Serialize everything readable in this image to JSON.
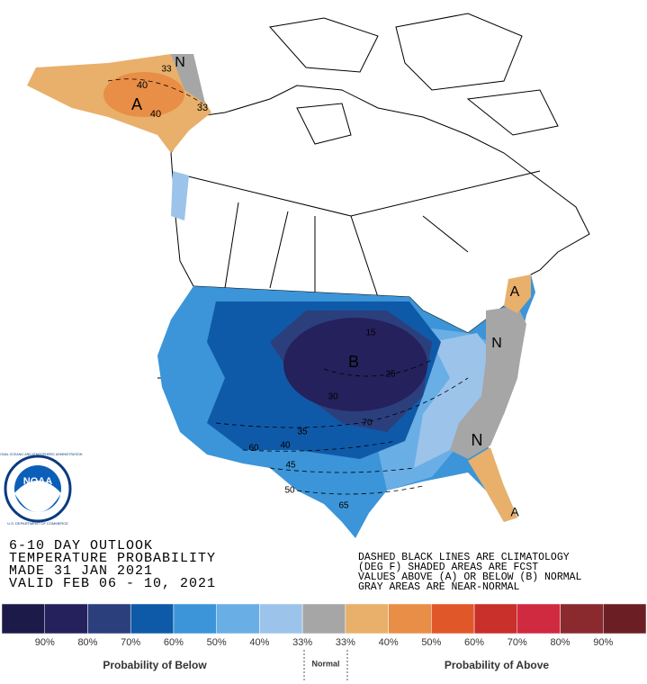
{
  "header": {
    "lines": [
      "6-10 DAY OUTLOOK",
      "TEMPERATURE PROBABILITY",
      "MADE  31 JAN 2021",
      "VALID  FEB 06 - 10, 2021"
    ]
  },
  "notes": {
    "lines": [
      "DASHED BLACK LINES ARE CLIMATOLOGY",
      "(DEG F) SHADED AREAS ARE FCST",
      "VALUES ABOVE (A) OR BELOW (B) NORMAL",
      "GRAY AREAS ARE NEAR-NORMAL"
    ]
  },
  "logo": {
    "name": "NOAA",
    "ring_top": "NATIONAL OCEANIC AND ATMOSPHERIC ADMINISTRATION",
    "ring_bottom": "U.S. DEPARTMENT OF COMMERCE"
  },
  "map_labels": [
    "33",
    "N",
    "40",
    "A",
    "40",
    "33",
    "A",
    "N",
    "B",
    "15",
    "25",
    "30",
    "35",
    "40",
    "45",
    "50",
    "60",
    "65",
    "70",
    "N",
    "A"
  ],
  "legend": {
    "colors": [
      "#1c1a48",
      "#25215c",
      "#2b3f7d",
      "#0f5aa8",
      "#3b95d8",
      "#6aaee6",
      "#9cc3ea",
      "#a6a6a6",
      "#e8b06b",
      "#e98e46",
      "#e0582a",
      "#c92f2b",
      "#cf2a40",
      "#8a2a2f",
      "#6b1f24"
    ],
    "labels": [
      "90%",
      "80%",
      "70%",
      "60%",
      "50%",
      "40%",
      "33%",
      "33%",
      "40%",
      "50%",
      "60%",
      "70%",
      "80%",
      "90%"
    ],
    "below": "Probability of Below",
    "normal": "Normal",
    "above": "Probability of Above"
  }
}
